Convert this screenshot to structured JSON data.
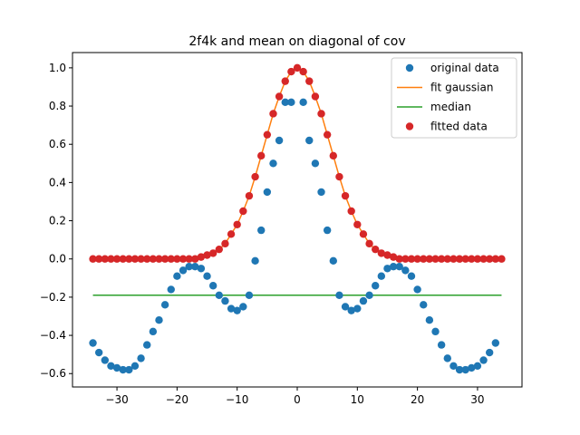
{
  "chart_data": {
    "type": "scatter",
    "title": "2f4k and mean on diagonal of cov",
    "xlabel": "",
    "ylabel": "",
    "xlim": [
      -37.4,
      37.4
    ],
    "ylim": [
      -0.67,
      1.08
    ],
    "xticks": [
      -30,
      -20,
      -10,
      0,
      10,
      20,
      30
    ],
    "xtick_labels": [
      "−30",
      "−20",
      "−10",
      "0",
      "10",
      "20",
      "30"
    ],
    "yticks": [
      -0.6,
      -0.4,
      -0.2,
      0.0,
      0.2,
      0.4,
      0.6,
      0.8,
      1.0
    ],
    "ytick_labels": [
      "−0.6",
      "−0.4",
      "−0.2",
      "0.0",
      "0.2",
      "0.4",
      "0.6",
      "0.8",
      "1.0"
    ],
    "grid": false,
    "legend_position": "top-right",
    "x": [
      -34,
      -33,
      -32,
      -31,
      -30,
      -29,
      -28,
      -27,
      -26,
      -25,
      -24,
      -23,
      -22,
      -21,
      -20,
      -19,
      -18,
      -17,
      -16,
      -15,
      -14,
      -13,
      -12,
      -11,
      -10,
      -9,
      -8,
      -7,
      -6,
      -5,
      -4,
      -3,
      -2,
      -1,
      0,
      1,
      2,
      3,
      4,
      5,
      6,
      7,
      8,
      9,
      10,
      11,
      12,
      13,
      14,
      15,
      16,
      17,
      18,
      19,
      20,
      21,
      22,
      23,
      24,
      25,
      26,
      27,
      28,
      29,
      30,
      31,
      32,
      33,
      34
    ],
    "series": [
      {
        "name": "original data",
        "kind": "scatter",
        "color": "#1f77b4",
        "values": [
          -0.44,
          -0.49,
          -0.53,
          -0.56,
          -0.57,
          -0.58,
          -0.58,
          -0.56,
          -0.52,
          -0.45,
          -0.38,
          -0.32,
          -0.24,
          -0.16,
          -0.09,
          -0.06,
          -0.04,
          -0.04,
          -0.05,
          -0.09,
          -0.14,
          -0.19,
          -0.22,
          -0.26,
          -0.27,
          -0.25,
          -0.19,
          -0.01,
          0.15,
          0.35,
          0.5,
          0.62,
          0.82,
          0.82,
          null,
          0.82,
          0.62,
          0.5,
          0.35,
          0.15,
          -0.01,
          -0.19,
          -0.25,
          -0.27,
          -0.26,
          -0.22,
          -0.19,
          -0.14,
          -0.09,
          -0.05,
          -0.04,
          -0.04,
          -0.06,
          -0.09,
          -0.16,
          -0.24,
          -0.32,
          -0.38,
          -0.45,
          -0.52,
          -0.56,
          -0.58,
          -0.58,
          -0.57,
          -0.56,
          -0.53,
          -0.49,
          -0.44
        ]
      },
      {
        "name": "fit gaussian",
        "kind": "line",
        "color": "#ff7f0e",
        "values": [
          0.0,
          0.0,
          0.0,
          0.0,
          0.0,
          0.0,
          0.0,
          0.0,
          0.0,
          0.0,
          0.0,
          0.0,
          0.0,
          0.0,
          0.0,
          0.0,
          0.0,
          0.0,
          0.01,
          0.02,
          0.03,
          0.05,
          0.08,
          0.13,
          0.18,
          0.25,
          0.33,
          0.43,
          0.54,
          0.65,
          0.76,
          0.85,
          0.93,
          0.98,
          1.0,
          0.98,
          0.93,
          0.85,
          0.76,
          0.65,
          0.54,
          0.43,
          0.33,
          0.25,
          0.18,
          0.13,
          0.08,
          0.05,
          0.03,
          0.02,
          0.01,
          0.0,
          0.0,
          0.0,
          0.0,
          0.0,
          0.0,
          0.0,
          0.0,
          0.0,
          0.0,
          0.0,
          0.0,
          0.0,
          0.0,
          0.0,
          0.0,
          0.0,
          0.0
        ]
      },
      {
        "name": "median",
        "kind": "line",
        "color": "#2ca02c",
        "values": [
          -0.19,
          -0.19,
          -0.19,
          -0.19,
          -0.19,
          -0.19,
          -0.19,
          -0.19,
          -0.19,
          -0.19,
          -0.19,
          -0.19,
          -0.19,
          -0.19,
          -0.19,
          -0.19,
          -0.19,
          -0.19,
          -0.19,
          -0.19,
          -0.19,
          -0.19,
          -0.19,
          -0.19,
          -0.19,
          -0.19,
          -0.19,
          -0.19,
          -0.19,
          -0.19,
          -0.19,
          -0.19,
          -0.19,
          -0.19,
          -0.19,
          -0.19,
          -0.19,
          -0.19,
          -0.19,
          -0.19,
          -0.19,
          -0.19,
          -0.19,
          -0.19,
          -0.19,
          -0.19,
          -0.19,
          -0.19,
          -0.19,
          -0.19,
          -0.19,
          -0.19,
          -0.19,
          -0.19,
          -0.19,
          -0.19,
          -0.19,
          -0.19,
          -0.19,
          -0.19,
          -0.19,
          -0.19,
          -0.19,
          -0.19,
          -0.19,
          -0.19,
          -0.19,
          -0.19,
          -0.19
        ]
      },
      {
        "name": "fitted data",
        "kind": "scatter",
        "color": "#d62728",
        "values": [
          0.0,
          0.0,
          0.0,
          0.0,
          0.0,
          0.0,
          0.0,
          0.0,
          0.0,
          0.0,
          0.0,
          0.0,
          0.0,
          0.0,
          0.0,
          0.0,
          0.0,
          0.0,
          0.01,
          0.02,
          0.03,
          0.05,
          0.08,
          0.13,
          0.18,
          0.25,
          0.33,
          0.43,
          0.54,
          0.65,
          0.76,
          0.85,
          0.93,
          0.98,
          1.0,
          0.98,
          0.93,
          0.85,
          0.76,
          0.65,
          0.54,
          0.43,
          0.33,
          0.25,
          0.18,
          0.13,
          0.08,
          0.05,
          0.03,
          0.02,
          0.01,
          0.0,
          0.0,
          0.0,
          0.0,
          0.0,
          0.0,
          0.0,
          0.0,
          0.0,
          0.0,
          0.0,
          0.0,
          0.0,
          0.0,
          0.0,
          0.0,
          0.0,
          0.0
        ]
      }
    ]
  }
}
